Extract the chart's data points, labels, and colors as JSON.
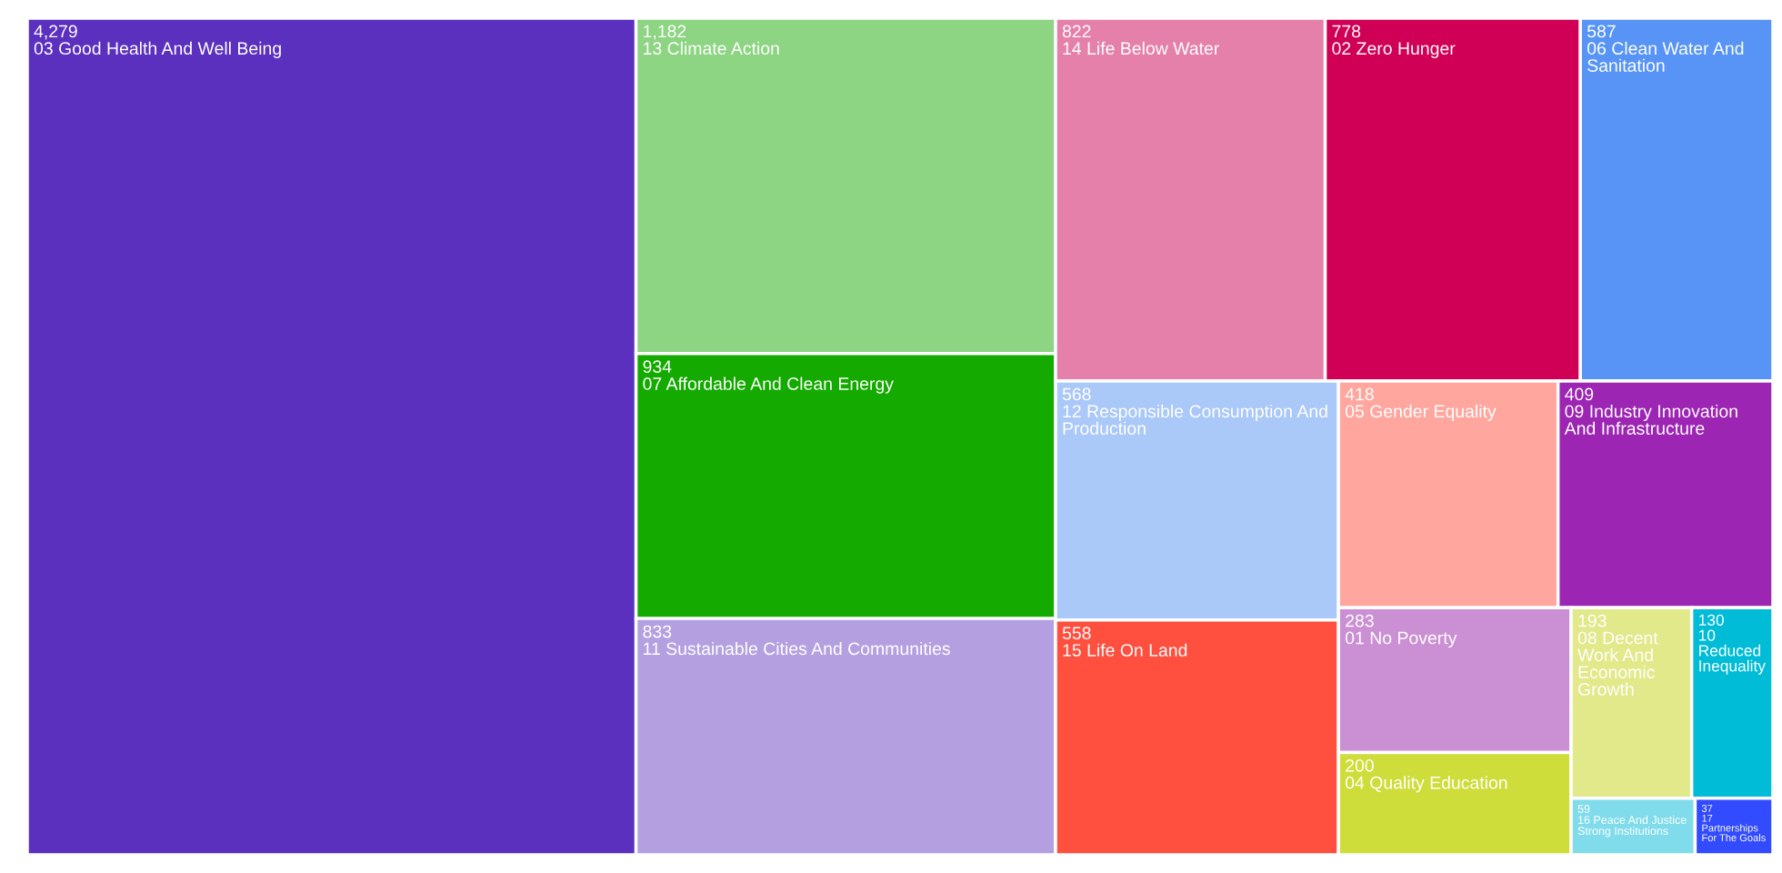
{
  "chart_data": {
    "type": "other",
    "categories": [
      "03 Good Health And Well Being",
      "13 Climate Action",
      "07 Affordable And Clean Energy",
      "11 Sustainable Cities And Communities",
      "14 Life Below Water",
      "02 Zero Hunger",
      "06 Clean Water And Sanitation",
      "12 Responsible Consumption And Production",
      "15 Life On Land",
      "05 Gender Equality",
      "09 Industry Innovation And Infrastructure",
      "01 No Poverty",
      "04 Quality Education",
      "08 Decent Work And Economic Growth",
      "10 Reduced Inequality",
      "16 Peace And Justice Strong Institutions",
      "17 Partnerships For The Goals"
    ],
    "values": [
      4279,
      1182,
      934,
      833,
      822,
      778,
      587,
      568,
      558,
      418,
      409,
      283,
      200,
      193,
      130,
      59,
      37
    ],
    "colors": [
      "#5c30be",
      "#8dd483",
      "#14aa00",
      "#b4a0e0",
      "#e580ab",
      "#cf0056",
      "#5794f5",
      "#aac8f8",
      "#ff4f3f",
      "#ffa69e",
      "#9c26b3",
      "#cb90d3",
      "#cedd39",
      "#e2e98a",
      "#00bcd6",
      "#80dceb",
      "#324bff"
    ],
    "value_labels": [
      "4,279",
      "1,182",
      "934",
      "833",
      "822",
      "778",
      "587",
      "568",
      "558",
      "418",
      "409",
      "283",
      "200",
      "193",
      "130",
      "59",
      "37"
    ]
  }
}
